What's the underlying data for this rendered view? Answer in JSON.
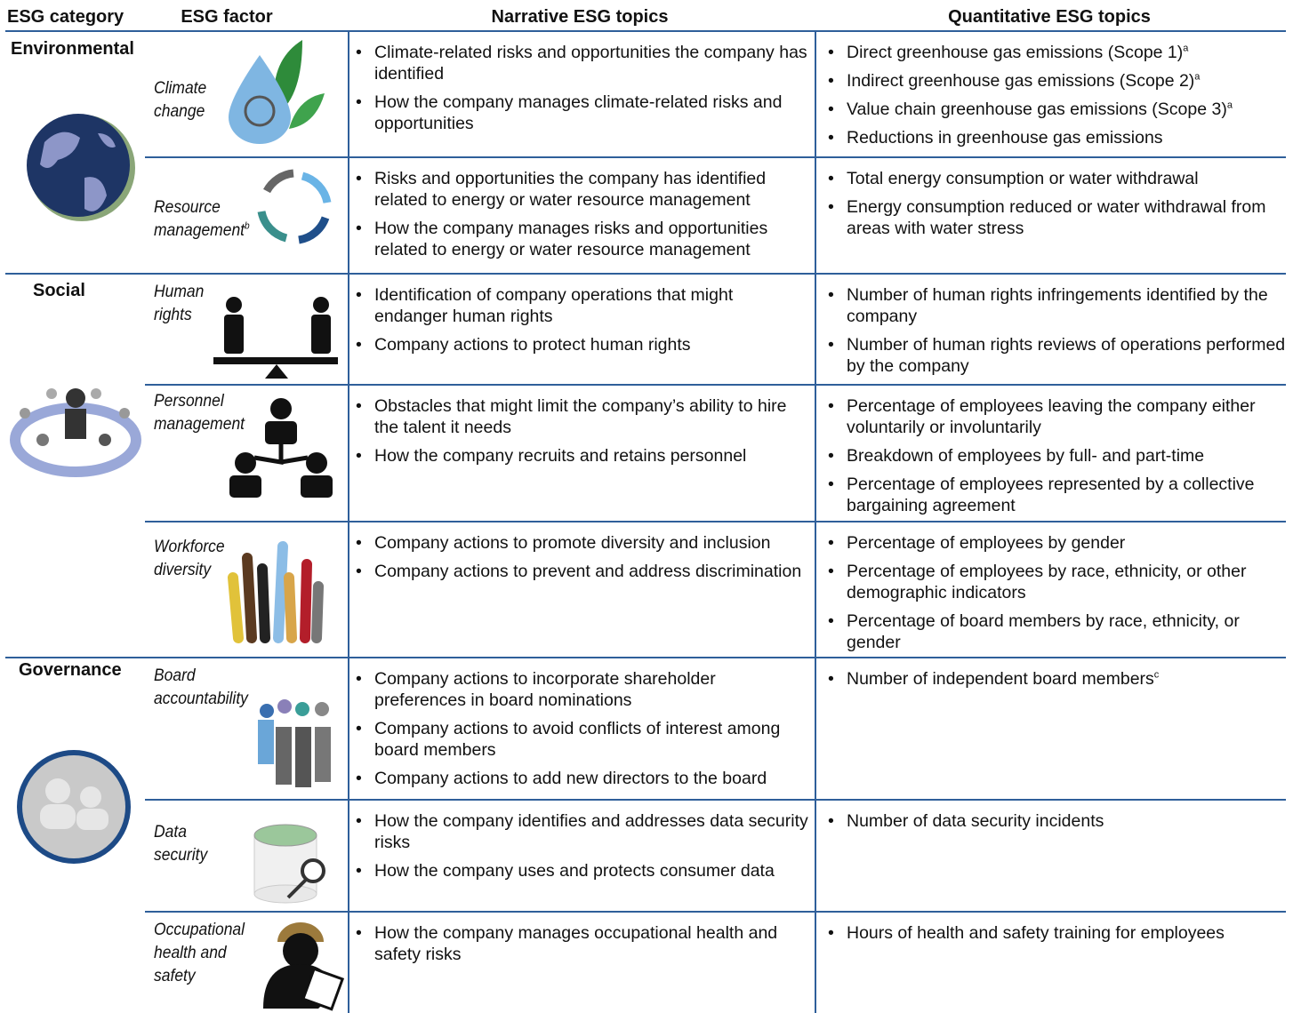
{
  "headers": [
    "ESG category",
    "ESG factor",
    "Narrative ESG topics",
    "Quantitative ESG topics"
  ],
  "categories": [
    {
      "name": "Environmental",
      "factors": [
        {
          "name": "Climate change",
          "narrative": [
            "Climate-related risks and opportunities the company has identified",
            "How the company manages climate-related risks and opportunities"
          ],
          "quantitative": [
            {
              "text": "Direct greenhouse gas emissions (Scope 1)",
              "note": "a"
            },
            {
              "text": "Indirect greenhouse gas emissions (Scope 2)",
              "note": "a"
            },
            {
              "text": "Value chain greenhouse gas emissions (Scope 3)",
              "note": "a"
            },
            {
              "text": "Reductions in greenhouse gas emissions"
            }
          ]
        },
        {
          "name": "Resource management",
          "note": "b",
          "narrative": [
            "Risks and opportunities the company has identified related to energy or water resource management",
            "How the company manages risks and opportunities related to energy or water resource management"
          ],
          "quantitative": [
            {
              "text": "Total energy consumption or water withdrawal"
            },
            {
              "text": "Energy consumption reduced or water withdrawal from areas with water stress"
            }
          ]
        }
      ]
    },
    {
      "name": "Social",
      "factors": [
        {
          "name": "Human rights",
          "narrative": [
            "Identification of company operations that might endanger human rights",
            "Company actions to protect human rights"
          ],
          "quantitative": [
            {
              "text": "Number of human rights infringements identified by the company"
            },
            {
              "text": "Number of human rights reviews of operations performed by the company"
            }
          ]
        },
        {
          "name": "Personnel management",
          "narrative": [
            "Obstacles that might limit the company’s ability to hire the talent it needs",
            "How the company recruits and retains personnel"
          ],
          "quantitative": [
            {
              "text": "Percentage of employees leaving the company either voluntarily or involuntarily"
            },
            {
              "text": "Breakdown of employees by full- and part-time"
            },
            {
              "text": "Percentage of employees represented by a collective bargaining agreement"
            }
          ]
        },
        {
          "name": "Workforce diversity",
          "narrative": [
            "Company actions to promote diversity and inclusion",
            "Company actions to prevent and address discrimination"
          ],
          "quantitative": [
            {
              "text": "Percentage of employees by gender"
            },
            {
              "text": "Percentage of employees by race, ethnicity, or other demographic indicators"
            },
            {
              "text": "Percentage of board members by race, ethnicity, or gender"
            }
          ]
        }
      ]
    },
    {
      "name": "Governance",
      "factors": [
        {
          "name": "Board accountability",
          "narrative": [
            "Company actions to incorporate shareholder preferences in board nominations",
            "Company actions to avoid conflicts of interest among board members",
            "Company actions to add new directors to the board"
          ],
          "quantitative": [
            {
              "text": "Number of independent board members",
              "note": "c"
            }
          ]
        },
        {
          "name": "Data security",
          "narrative": [
            "How the company identifies and addresses data security risks",
            "How the company uses and protects consumer data"
          ],
          "quantitative": [
            {
              "text": "Number of data security incidents"
            }
          ]
        },
        {
          "name": "Occupational health and safety",
          "narrative": [
            "How the company manages occupational health and safety risks"
          ],
          "quantitative": [
            {
              "text": "Hours of health and safety training for employees"
            }
          ]
        }
      ]
    }
  ]
}
